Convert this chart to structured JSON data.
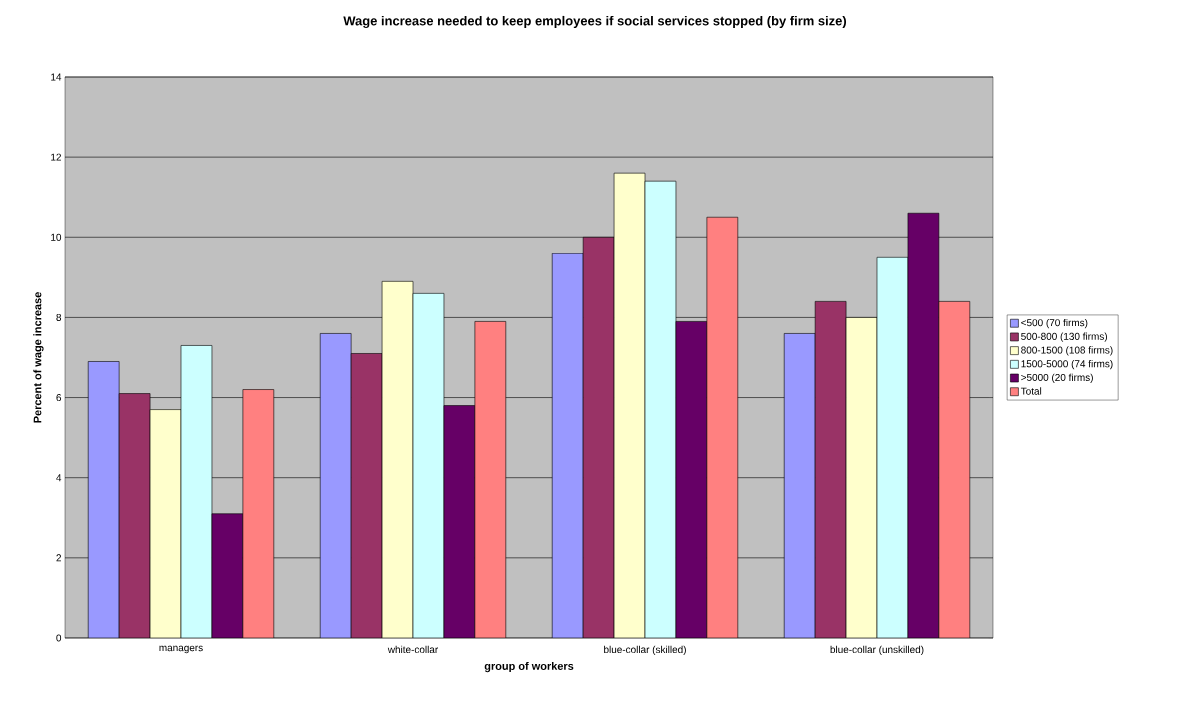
{
  "chart_data": {
    "type": "bar",
    "title": "Wage increase needed to keep employees if social services stopped (by firm size)",
    "xlabel": "group of workers",
    "ylabel": "Percent of wage increase",
    "categories": [
      "managers",
      "white-collar",
      "blue-collar (skilled)",
      "blue-collar (unskilled)"
    ],
    "series": [
      {
        "name": "<500 (70 firms)",
        "color": "#9999ff",
        "values": [
          6.9,
          7.6,
          9.6,
          7.6
        ]
      },
      {
        "name": "500-800 (130 firms)",
        "color": "#993366",
        "values": [
          6.1,
          7.1,
          10.0,
          8.4
        ]
      },
      {
        "name": "800-1500 (108 firms)",
        "color": "#ffffcc",
        "values": [
          5.7,
          8.9,
          11.6,
          8.0
        ]
      },
      {
        "name": "1500-5000 (74 firms)",
        "color": "#ccffff",
        "values": [
          7.3,
          8.6,
          11.4,
          9.5
        ]
      },
      {
        "name": ">5000 (20 firms)",
        "color": "#660066",
        "values": [
          3.1,
          5.8,
          7.9,
          10.6
        ]
      },
      {
        "name": "Total",
        "color": "#ff8080",
        "values": [
          6.2,
          7.9,
          10.5,
          8.4
        ]
      }
    ],
    "ylim": [
      0,
      14
    ],
    "yticks": [
      0,
      2,
      4,
      6,
      8,
      10,
      12,
      14
    ],
    "grid": "y",
    "legend": "right"
  }
}
